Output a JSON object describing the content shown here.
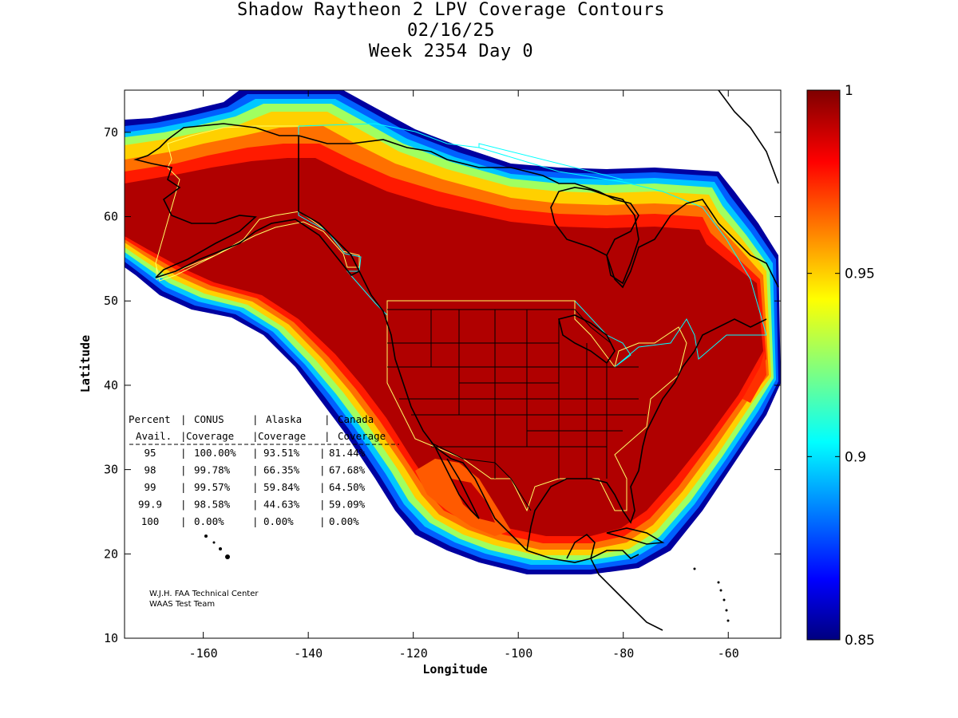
{
  "title": {
    "line1": "Shadow Raytheon 2 LPV Coverage Contours",
    "line2": "02/16/25",
    "line3": "Week 2354 Day 0"
  },
  "axes": {
    "xlabel": "Longitude",
    "ylabel": "Latitude",
    "xticks": [
      "-160",
      "-140",
      "-120",
      "-100",
      "-80",
      "-60"
    ],
    "yticks": [
      "10",
      "20",
      "30",
      "40",
      "50",
      "60",
      "70"
    ],
    "xlim": [
      -175,
      -50
    ],
    "ylim": [
      10,
      75
    ]
  },
  "colorbar": {
    "min": 0.85,
    "max": 1,
    "ticks": [
      "0.85",
      "0.9",
      "0.95",
      "1"
    ],
    "colormap": "jet"
  },
  "table": {
    "header1": [
      "Percent",
      "CONUS",
      "Alaska",
      "Canada"
    ],
    "header2": [
      "Avail.",
      "Coverage",
      "Coverage",
      "Coverage"
    ],
    "rows": [
      [
        "95",
        "100.00%",
        "93.51%",
        "81.44%"
      ],
      [
        "98",
        "99.78%",
        "66.35%",
        "67.68%"
      ],
      [
        "99",
        "99.57%",
        "59.84%",
        "64.50%"
      ],
      [
        "99.9",
        "98.58%",
        "44.63%",
        "59.09%"
      ],
      [
        "100",
        "0.00%",
        "0.00%",
        "0.00%"
      ]
    ]
  },
  "credit": {
    "line1": "W.J.H. FAA Technical Center",
    "line2": "WAAS Test Team"
  },
  "colors": {
    "full_coverage": "#b00000",
    "service_boundary_conus": "#ffff66",
    "service_boundary_canada": "#00ffff",
    "coastline": "#000000"
  }
}
